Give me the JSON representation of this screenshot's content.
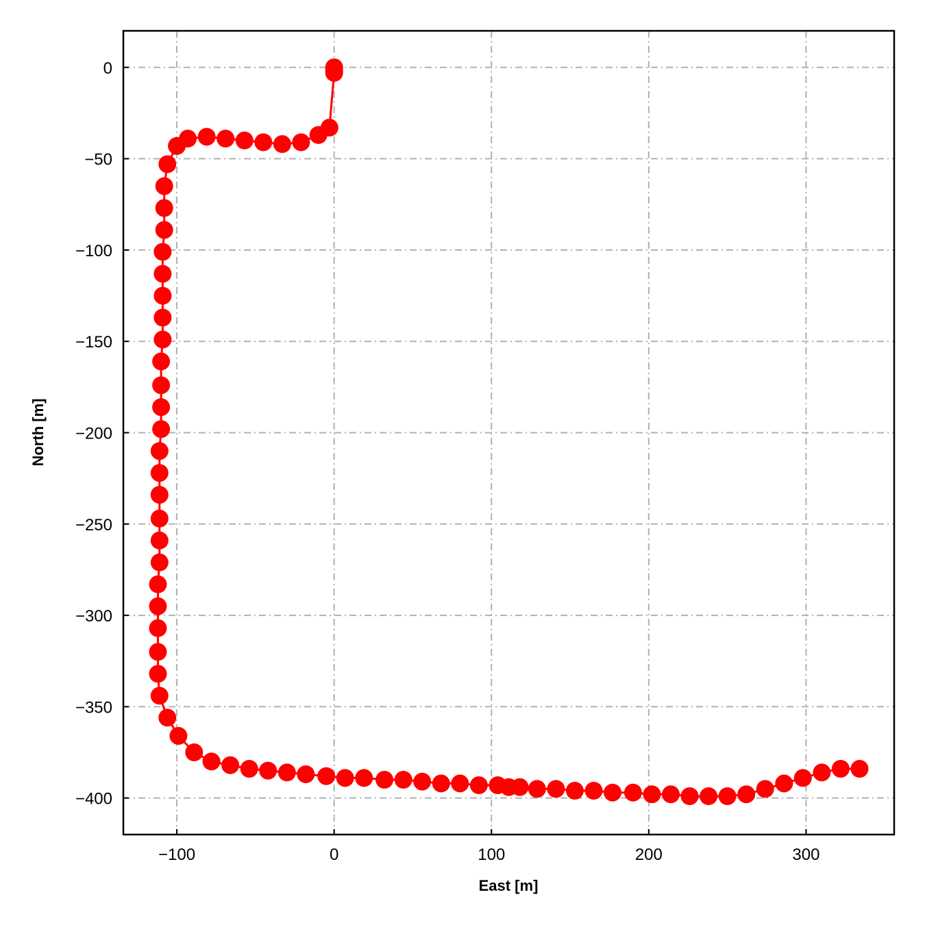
{
  "chart_data": {
    "type": "line",
    "title": "",
    "xlabel": "East [m]",
    "ylabel": "North [m]",
    "xlim": [
      -134,
      356
    ],
    "ylim": [
      -420,
      20
    ],
    "x_ticks": [
      -100,
      0,
      100,
      200,
      300
    ],
    "y_ticks": [
      0,
      -50,
      -100,
      -150,
      -200,
      -250,
      -300,
      -350,
      -400
    ],
    "x_tick_labels": [
      "−100",
      "0",
      "100",
      "200",
      "300"
    ],
    "y_tick_labels": [
      "0",
      "−50",
      "−100",
      "−150",
      "−200",
      "−250",
      "−300",
      "−350",
      "−400"
    ],
    "grid": true,
    "grid_style": "dash-dot",
    "legend": "none",
    "series": [
      {
        "color": "#ff0000",
        "marker": "circle",
        "x": [
          0,
          0,
          0,
          0,
          -3,
          -10,
          -21,
          -33,
          -45,
          -57,
          -69,
          -81,
          -93,
          -100,
          -106,
          -108,
          -108,
          -108,
          -109,
          -109,
          -109,
          -109,
          -109,
          -110,
          -110,
          -110,
          -110,
          -111,
          -111,
          -111,
          -111,
          -111,
          -111,
          -112,
          -112,
          -112,
          -112,
          -112,
          -111,
          -106,
          -99,
          -89,
          -78,
          -66,
          -54,
          -42,
          -30,
          -18,
          -5,
          7,
          19,
          32,
          44,
          56,
          68,
          80,
          92,
          104,
          111,
          118,
          129,
          141,
          153,
          165,
          177,
          190,
          202,
          214,
          226,
          238,
          250,
          262,
          274,
          286,
          298,
          310,
          322,
          334
        ],
        "y": [
          0,
          -1,
          -2,
          -3,
          -33,
          -37,
          -41,
          -42,
          -41,
          -40,
          -39,
          -38,
          -39,
          -43,
          -53,
          -65,
          -77,
          -89,
          -101,
          -113,
          -125,
          -137,
          -149,
          -161,
          -174,
          -186,
          -198,
          -210,
          -222,
          -234,
          -247,
          -259,
          -271,
          -283,
          -295,
          -307,
          -320,
          -332,
          -344,
          -356,
          -366,
          -375,
          -380,
          -382,
          -384,
          -385,
          -386,
          -387,
          -388,
          -389,
          -389,
          -390,
          -390,
          -391,
          -392,
          -392,
          -393,
          -393,
          -394,
          -394,
          -395,
          -395,
          -396,
          -396,
          -397,
          -397,
          -398,
          -398,
          -399,
          -399,
          -399,
          -398,
          -395,
          -392,
          -389,
          -386,
          -384,
          -384
        ]
      }
    ]
  }
}
